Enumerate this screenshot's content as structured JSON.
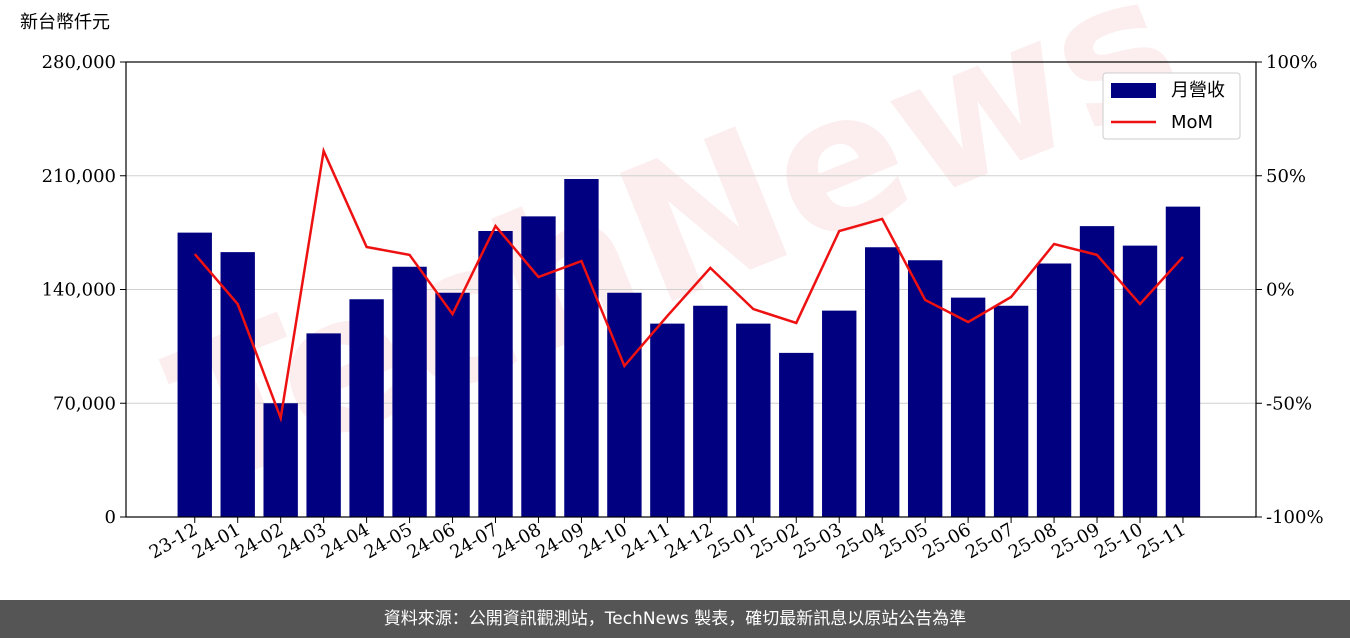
{
  "chart_data": {
    "type": "bar-line",
    "y_label": "新台幣仟元",
    "watermark": "TechNews",
    "categories": [
      "23-12",
      "24-01",
      "24-02",
      "24-03",
      "24-04",
      "24-05",
      "24-06",
      "24-07",
      "24-08",
      "24-09",
      "24-10",
      "24-11",
      "24-12",
      "25-01",
      "25-02",
      "25-03",
      "25-04",
      "25-05",
      "25-06",
      "25-07",
      "25-08",
      "25-09",
      "25-10",
      "25-11"
    ],
    "series": [
      {
        "name": "月營收",
        "type": "bar",
        "color": "#000080",
        "values": [
          175000,
          163000,
          70000,
          113000,
          134000,
          154000,
          138000,
          176000,
          185000,
          208000,
          138000,
          119000,
          130000,
          119000,
          101000,
          127000,
          166000,
          158000,
          135000,
          130000,
          156000,
          179000,
          167000,
          191000
        ]
      },
      {
        "name": "MoM",
        "type": "line",
        "axis": "y2",
        "color": "#ee1111",
        "values": [
          15.6,
          -6.4,
          -56.5,
          60.9,
          18.7,
          15.2,
          -10.8,
          27.9,
          5.5,
          12.5,
          -33.6,
          -11.6,
          9.5,
          -8.6,
          -14.7,
          25.7,
          31.0,
          -4.6,
          -14.3,
          -3.3,
          20.0,
          15.2,
          -6.4,
          14.3
        ]
      }
    ],
    "ylim": [
      0,
      280000
    ],
    "yticks": [
      0,
      {
        "value": 70000,
        "label": "70,000"
      },
      {
        "value": 140000,
        "label": "140,000"
      },
      {
        "value": 210000,
        "label": "210,000"
      },
      {
        "value": 280000,
        "label": "280,000"
      }
    ],
    "y2lim": [
      -100,
      100
    ],
    "y2ticks": [
      {
        "value": -100,
        "label": "-100%"
      },
      {
        "value": -50,
        "label": "-50%"
      },
      {
        "value": 0,
        "label": "0%"
      },
      {
        "value": 50,
        "label": "50%"
      },
      {
        "value": 100,
        "label": "100%"
      }
    ],
    "grid": true,
    "legend": "upper right",
    "source": "資料來源：公開資訊觀測站，TechNews 製表，確切最新訊息以原站公告為準"
  }
}
